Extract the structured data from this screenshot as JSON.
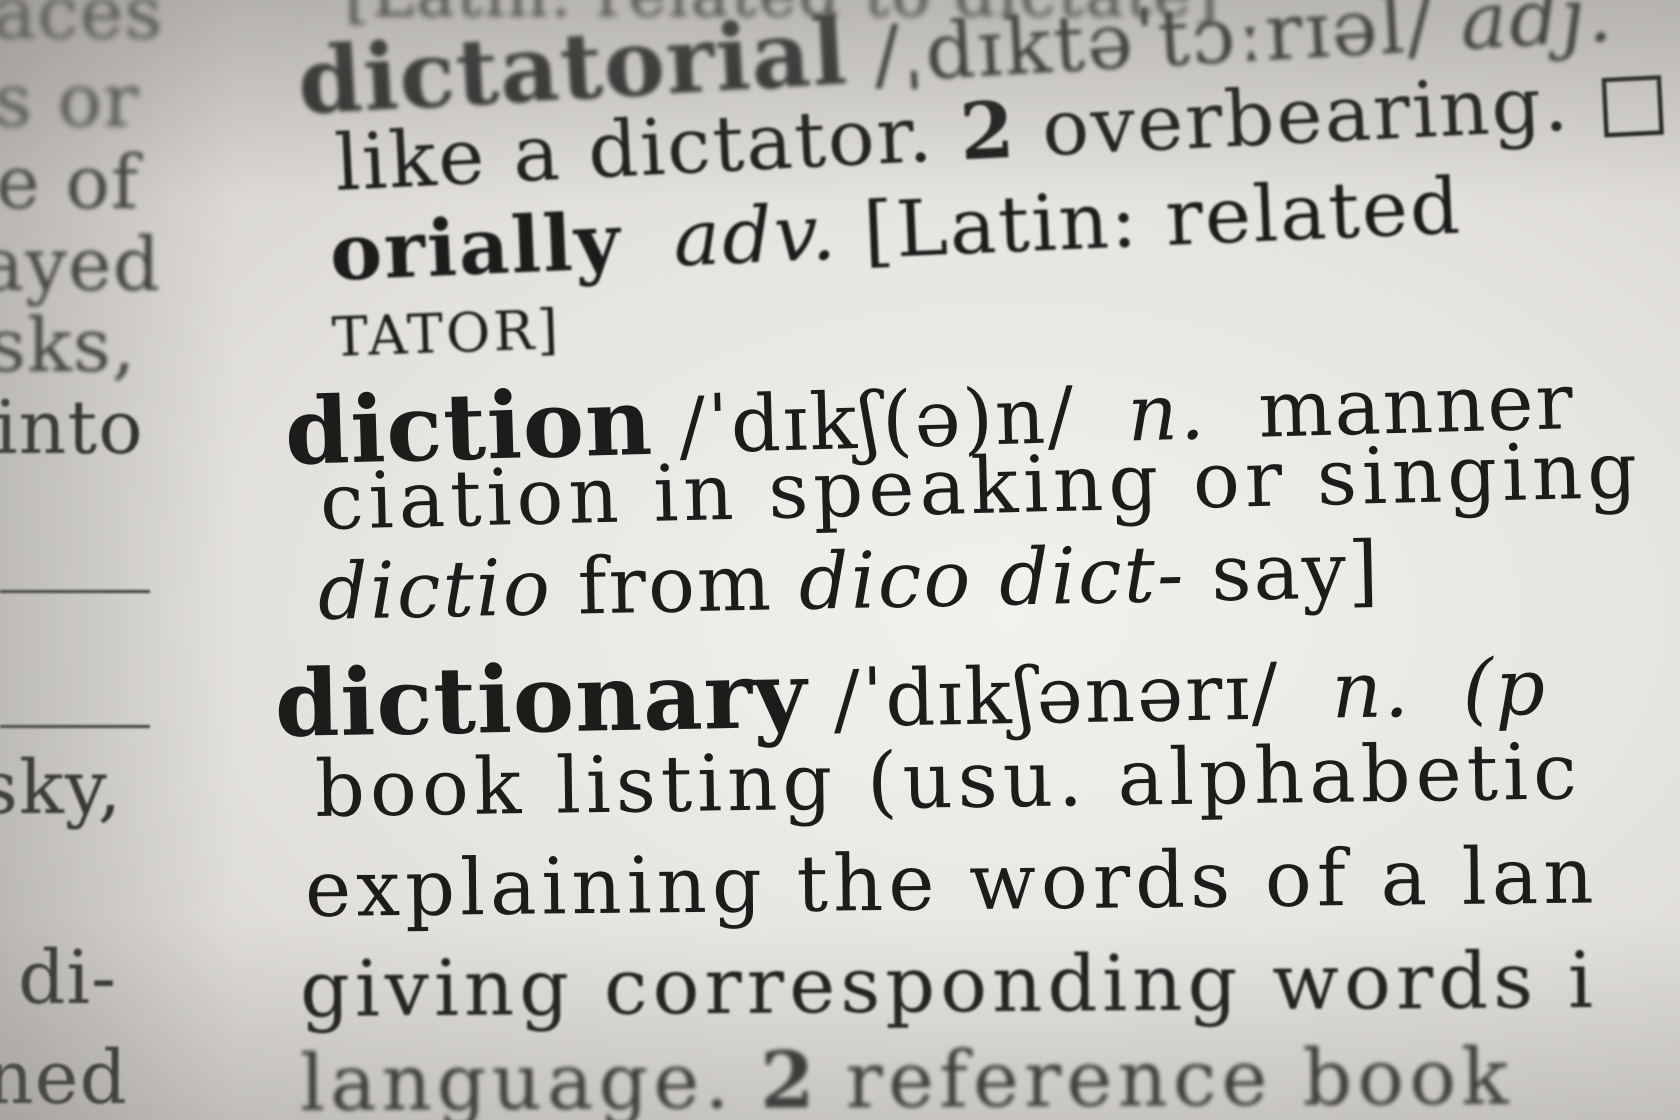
{
  "left_column": {
    "fragments": [
      "aces",
      "s or",
      "e of",
      "ayed",
      "sks,",
      "into",
      "sky,",
      "di-",
      "ned"
    ]
  },
  "entries": {
    "top_cut": "[Latin: related to dictate]",
    "dictatorial": {
      "headword": "dictatorial",
      "pron": "/ˌdɪktəˈtɔːrɪəl/",
      "pos": "adj.",
      "line2_a": "like a dictator.",
      "line2_num": "2",
      "line2_b": "overbearing.",
      "line2_box": "□",
      "line3_a": "orially",
      "line3_pos": "adv.",
      "line3_b": "[Latin: related",
      "line4": "TATOR]"
    },
    "diction": {
      "headword": "diction",
      "pron": "/ˈdɪkʃ(ə)n/",
      "pos": "n.",
      "def_a": "manner",
      "line2": "ciation in speaking or singing",
      "line3_it1": "dictio",
      "line3_a": "from",
      "line3_it2": "dico dict-",
      "line3_b": "say]"
    },
    "dictionary": {
      "headword": "dictionary",
      "pron": "/ˈdɪkʃənərɪ/",
      "pos": "n.",
      "def_a": "(p",
      "line2": "book listing (usu. alphabetic",
      "line3": "explaining the words of a lan",
      "line4": "giving corresponding words i",
      "line5_a": "language.",
      "line5_num": "2",
      "line5_b": "reference book"
    }
  }
}
